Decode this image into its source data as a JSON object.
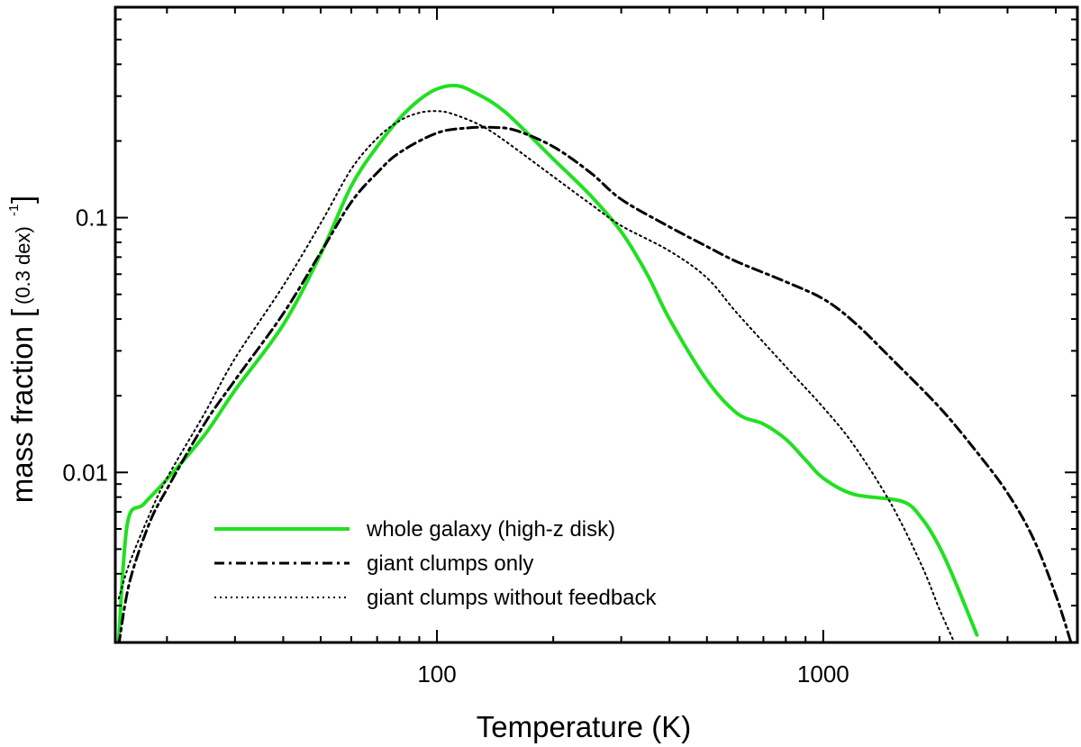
{
  "chart_data": {
    "type": "line",
    "xscale": "log",
    "yscale": "log",
    "xlabel": "Temperature (K)",
    "ylabel": "mass fraction",
    "ylabel_unit_open": "[",
    "ylabel_unit_body": "(0.3 dex)",
    "ylabel_unit_exp": "-1",
    "ylabel_unit_close": "]",
    "xlim": [
      14.7,
      4550
    ],
    "ylim": [
      0.00215,
      0.67
    ],
    "xticks": [
      {
        "value": 100,
        "label": "100"
      },
      {
        "value": 1000,
        "label": "1000"
      }
    ],
    "yticks": [
      {
        "value": 0.01,
        "label": "0.01"
      },
      {
        "value": 0.1,
        "label": "0.1"
      }
    ],
    "legend_position": "lower-left",
    "series": [
      {
        "name": "whole galaxy (high-z disk)",
        "color": "#21e021",
        "style": "solid",
        "x": [
          15.0,
          15.8,
          17.4,
          20.0,
          25.0,
          30.0,
          40.0,
          50.0,
          60.0,
          70.0,
          80.0,
          90.0,
          100.0,
          112.0,
          125.0,
          150.0,
          200.0,
          250.0,
          300.0,
          350.0,
          400.0,
          500.0,
          600.0,
          700.0,
          800.0,
          900.0,
          1000.0,
          1200.0,
          1600.0,
          1800.0,
          2000.0,
          2200.0,
          2500.0
        ],
        "y": [
          0.0022,
          0.0063,
          0.0075,
          0.0094,
          0.014,
          0.021,
          0.038,
          0.072,
          0.133,
          0.19,
          0.245,
          0.29,
          0.32,
          0.33,
          0.31,
          0.26,
          0.17,
          0.122,
          0.088,
          0.06,
          0.04,
          0.023,
          0.017,
          0.0155,
          0.0135,
          0.0112,
          0.0095,
          0.0082,
          0.0077,
          0.0066,
          0.0051,
          0.0037,
          0.0023
        ]
      },
      {
        "name": "giant clumps only",
        "color": "#000000",
        "style": "dashdot",
        "x": [
          15.0,
          16.0,
          18.0,
          20.0,
          25.0,
          30.0,
          40.0,
          50.0,
          60.0,
          70.0,
          80.0,
          100.0,
          120.0,
          140.0,
          160.0,
          200.0,
          250.0,
          300.0,
          400.0,
          500.0,
          600.0,
          800.0,
          1000.0,
          1200.0,
          1500.0,
          2000.0,
          2500.0,
          3000.0,
          3500.0,
          4000.0,
          4400.0
        ],
        "y": [
          0.0021,
          0.0037,
          0.0063,
          0.0086,
          0.0155,
          0.023,
          0.042,
          0.073,
          0.115,
          0.15,
          0.18,
          0.215,
          0.225,
          0.226,
          0.22,
          0.19,
          0.15,
          0.118,
          0.092,
          0.077,
          0.067,
          0.056,
          0.048,
          0.039,
          0.028,
          0.018,
          0.012,
          0.0083,
          0.0055,
          0.0033,
          0.0021
        ]
      },
      {
        "name": "giant clumps without feedback",
        "color": "#000000",
        "style": "dotted",
        "x": [
          15.0,
          16.0,
          18.0,
          20.0,
          25.0,
          30.0,
          40.0,
          50.0,
          60.0,
          70.0,
          80.0,
          90.0,
          100.0,
          110.0,
          130.0,
          150.0,
          200.0,
          250.0,
          300.0,
          400.0,
          500.0,
          600.0,
          800.0,
          1000.0,
          1200.0,
          1500.0,
          1800.0,
          2000.0,
          2200.0
        ],
        "y": [
          0.0032,
          0.0044,
          0.0068,
          0.0095,
          0.017,
          0.028,
          0.054,
          0.095,
          0.155,
          0.205,
          0.24,
          0.258,
          0.262,
          0.255,
          0.23,
          0.2,
          0.145,
          0.113,
          0.093,
          0.074,
          0.058,
          0.042,
          0.026,
          0.018,
          0.0128,
          0.0075,
          0.0043,
          0.0029,
          0.0021
        ]
      }
    ]
  }
}
